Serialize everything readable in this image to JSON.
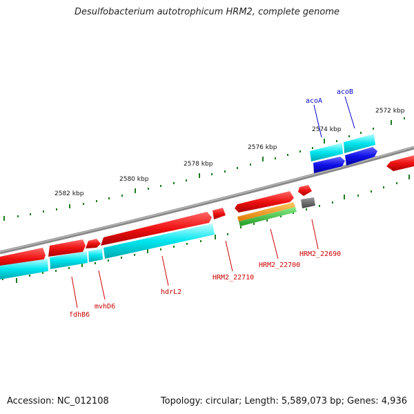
{
  "title": "Desulfobacterium autotrophicum HRM2, complete genome",
  "footer": {
    "accession": "Accession: NC_012108",
    "topology": "Topology: circular; Length: 5,589,073 bp; Genes: 4,936"
  },
  "scale_labels": [
    "2572 kbp",
    "2574 kbp",
    "2576 kbp",
    "2578 kbp",
    "2580 kbp",
    "2582 kbp"
  ],
  "gene_labels": [
    {
      "text": "acoA",
      "color": "#0000cc"
    },
    {
      "text": "acoB",
      "color": "#0000cc"
    },
    {
      "text": "HRM2_22690",
      "color": "#cc0000"
    },
    {
      "text": "HRM2_22700",
      "color": "#cc0000"
    },
    {
      "text": "HRM2_22710",
      "color": "#cc0000"
    },
    {
      "text": "hdrL2",
      "color": "#cc0000"
    },
    {
      "text": "mvhD6",
      "color": "#cc0000"
    },
    {
      "text": "fdhB6",
      "color": "#cc0000"
    }
  ],
  "colors": {
    "cds": "#ee1111",
    "gene": "#00e5ee",
    "highlight_gene": "#1010e8",
    "rna_orange": "#ff9900",
    "rna_green": "#33bb33",
    "other": "#666666",
    "backbone": "#888888",
    "tick": "#1a7a1a"
  }
}
